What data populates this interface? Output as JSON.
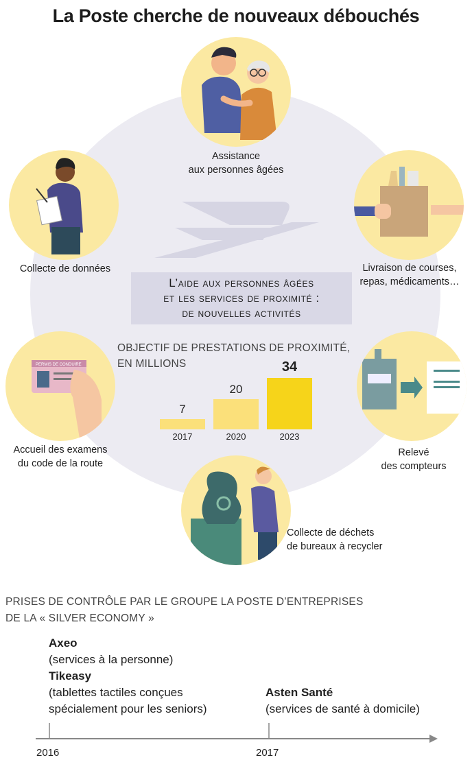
{
  "title": "La Poste cherche de nouveaux débouchés",
  "activities": {
    "assistance": [
      "Assistance",
      "aux personnes âgées"
    ],
    "collecte_donnees": [
      "Collecte de données"
    ],
    "livraison": [
      "Livraison de courses,",
      "repas, médicaments…"
    ],
    "examens": [
      "Accueil des examens",
      "du code de la route"
    ],
    "releve": [
      "Relevé",
      "des compteurs"
    ],
    "dechets": [
      "Collecte de déchets",
      "de bureaux à recycler"
    ]
  },
  "heading": [
    "L’aide aux personnes âgées",
    "et les services de proximité :",
    "de nouvelles activités"
  ],
  "license_card_text": "PERMIS DE CONDUIRE",
  "chart_data": {
    "type": "bar",
    "title": [
      "OBJECTIF DE PRESTATIONS DE PROXIMITÉ,",
      "EN MILLIONS"
    ],
    "categories": [
      "2017",
      "2020",
      "2023"
    ],
    "values": [
      7,
      20,
      34
    ],
    "value_labels": [
      "7",
      "20",
      "34"
    ],
    "colors": [
      "#fbe07a",
      "#fbe07a",
      "#f6d41a"
    ]
  },
  "timeline": {
    "title": [
      "PRISES DE CONTRÔLE PAR LE GROUPE LA POSTE D’ENTREPRISES",
      "DE LA « SILVER ECONOMY »"
    ],
    "events": [
      {
        "year": "2016",
        "entries": [
          {
            "name": "Axeo",
            "desc": [
              "(services à la personne)"
            ]
          },
          {
            "name": "Tikeasy",
            "desc": [
              "(tablettes tactiles conçues",
              "spécialement pour les seniors)"
            ]
          }
        ]
      },
      {
        "year": "2017",
        "entries": [
          {
            "name": "Asten Santé",
            "desc": [
              "(services de santé à domicile)"
            ]
          }
        ]
      }
    ]
  },
  "colors": {
    "circle_bg": "#ecebf2",
    "activity_bg": "#fbe9a2",
    "heading_bg": "#d9d8e6",
    "bar_light": "#fbe07a",
    "bar_dark": "#f6d41a",
    "axis": "#888888"
  }
}
